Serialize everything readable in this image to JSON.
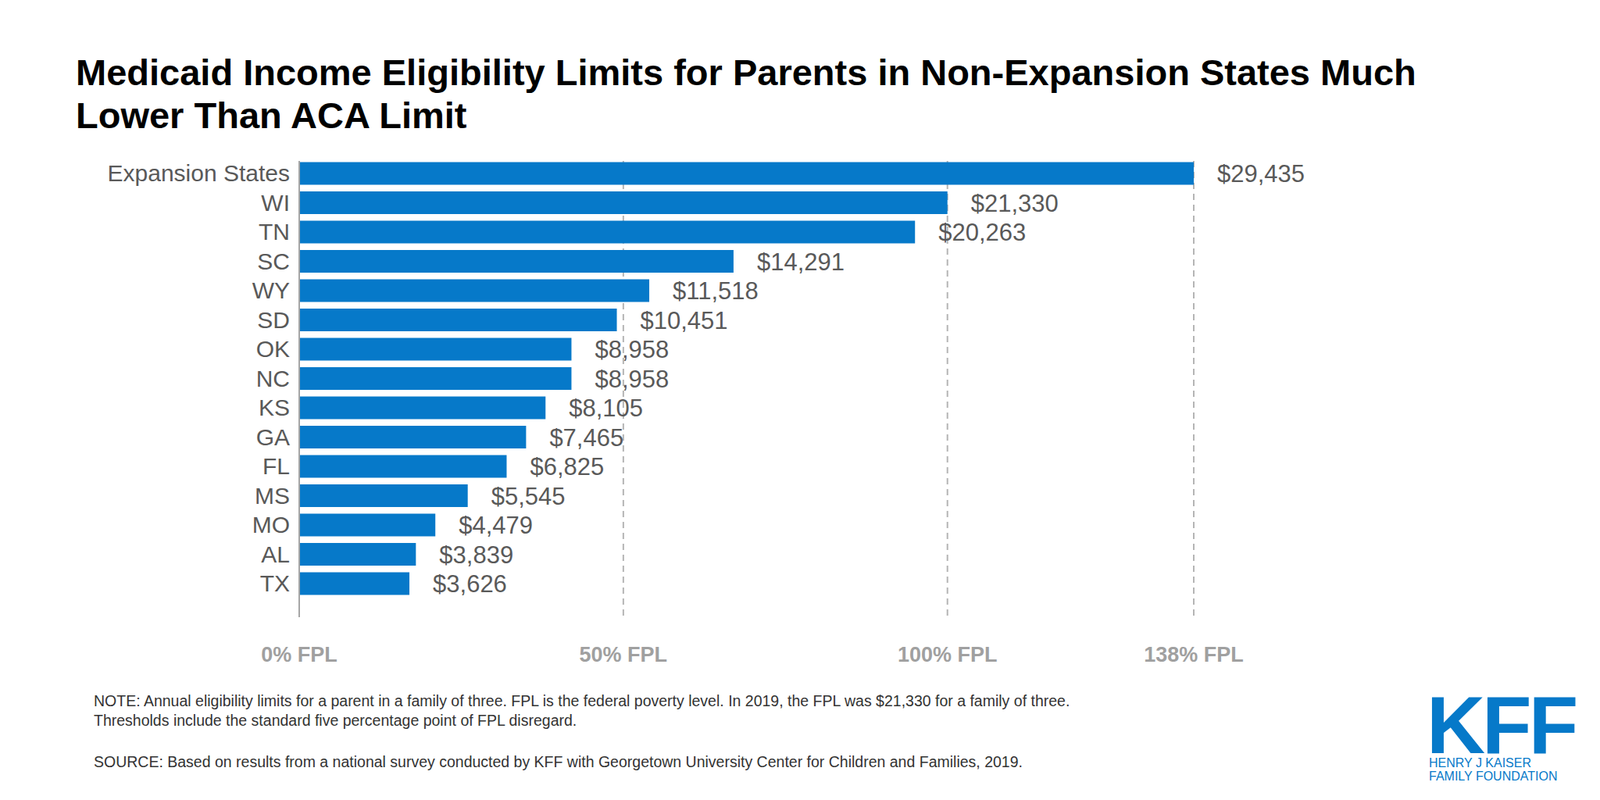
{
  "chart_data": {
    "type": "bar",
    "orientation": "horizontal",
    "title": "Medicaid Income Eligibility Limits for Parents in Non-Expansion States Much Lower Than ACA Limit",
    "categories": [
      "Expansion States",
      "WI",
      "TN",
      "SC",
      "WY",
      "SD",
      "OK",
      "NC",
      "KS",
      "GA",
      "FL",
      "MS",
      "MO",
      "AL",
      "TX"
    ],
    "values": [
      29435,
      21330,
      20263,
      14291,
      11518,
      10451,
      8958,
      8958,
      8105,
      7465,
      6825,
      5545,
      4479,
      3839,
      3626
    ],
    "value_labels": [
      "$29,435",
      "$21,330",
      "$20,263",
      "$14,291",
      "$11,518",
      "$10,451",
      "$8,958",
      "$8,958",
      "$8,105",
      "$7,465",
      "$6,825",
      "$5,545",
      "$4,479",
      "$3,839",
      "$3,626"
    ],
    "data_labels": true,
    "color": "#0679c9",
    "xlim": [
      0,
      29435
    ],
    "xticks": [
      {
        "value": 0,
        "label": "0% FPL"
      },
      {
        "value": 10665,
        "label": "50% FPL"
      },
      {
        "value": 21330,
        "label": "100% FPL"
      },
      {
        "value": 29435,
        "label": "138% FPL"
      }
    ],
    "grid": true,
    "notes": [
      "NOTE: Annual eligibility limits for a parent in a family of three. FPL is the federal poverty level. In 2019, the FPL was $21,330 for a family of three.",
      "Thresholds include the standard five percentage point of FPL disregard.",
      "SOURCE: Based on results from a national survey conducted by KFF with Georgetown University Center for Children and Families, 2019."
    ],
    "logo": {
      "mark": "KFF",
      "lines": [
        "HENRY J KAISER",
        "FAMILY FOUNDATION"
      ]
    }
  }
}
